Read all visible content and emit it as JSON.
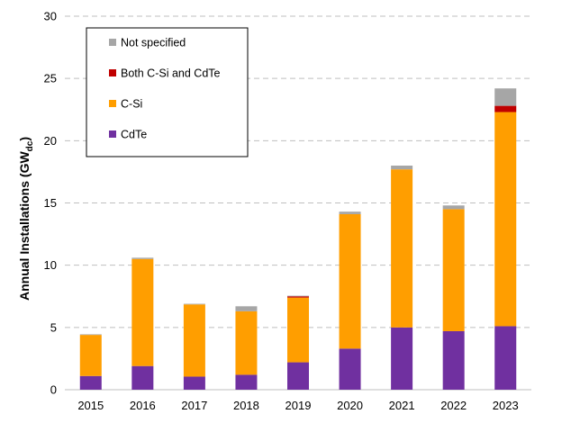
{
  "chart_data": {
    "type": "bar",
    "stacked": true,
    "title": "",
    "xlabel": "",
    "ylabel": {
      "main": "Annual Installations (GW",
      "sub": "dc",
      "close": ")"
    },
    "ylim": [
      0,
      30
    ],
    "yticks": [
      0,
      5,
      10,
      15,
      20,
      25,
      30
    ],
    "grid": "horizontal dashed",
    "legend_position": "top-left",
    "categories": [
      "2015",
      "2016",
      "2017",
      "2018",
      "2019",
      "2020",
      "2021",
      "2022",
      "2023"
    ],
    "series": [
      {
        "name": "CdTe",
        "color": "#7030a0",
        "values": [
          1.1,
          1.9,
          1.05,
          1.2,
          2.2,
          3.3,
          5.0,
          4.7,
          5.1
        ]
      },
      {
        "name": "C-Si",
        "color": "#ff9e00",
        "values": [
          3.3,
          8.6,
          5.8,
          5.1,
          5.2,
          10.8,
          12.7,
          9.8,
          17.2
        ]
      },
      {
        "name": "Both C-Si and CdTe",
        "color": "#c00000",
        "values": [
          0,
          0,
          0,
          0,
          0.1,
          0,
          0,
          0,
          0.5
        ]
      },
      {
        "name": "Not specified",
        "color": "#a6a6a6",
        "values": [
          0.05,
          0.1,
          0.05,
          0.4,
          0.05,
          0.2,
          0.3,
          0.3,
          1.4
        ]
      }
    ],
    "legend_order": [
      "Not specified",
      "Both C-Si and CdTe",
      "C-Si",
      "CdTe"
    ]
  }
}
